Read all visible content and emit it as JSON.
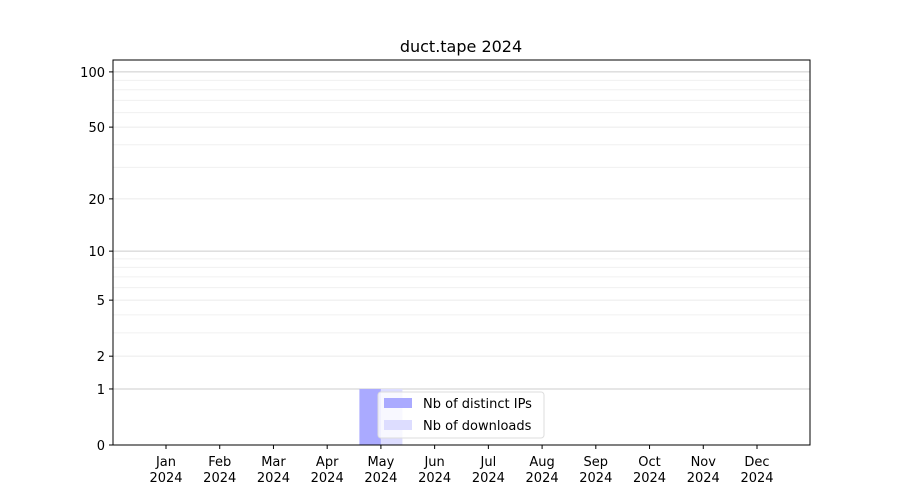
{
  "chart_data": {
    "type": "bar",
    "title": "duct.tape 2024",
    "xlabel": "",
    "ylabel": "",
    "yscale": "log(1+y)",
    "ylim": [
      0,
      116
    ],
    "yticks": [
      0,
      1,
      2,
      5,
      10,
      20,
      50,
      100
    ],
    "categories": [
      "Jan\n2024",
      "Feb\n2024",
      "Mar\n2024",
      "Apr\n2024",
      "May\n2024",
      "Jun\n2024",
      "Jul\n2024",
      "Aug\n2024",
      "Sep\n2024",
      "Oct\n2024",
      "Nov\n2024",
      "Dec\n2024"
    ],
    "series": [
      {
        "name": "Nb of distinct IPs",
        "color": "#aaaaff",
        "values": [
          0,
          0,
          0,
          0,
          1,
          0,
          0,
          0,
          0,
          0,
          0,
          0
        ]
      },
      {
        "name": "Nb of downloads",
        "color": "#ddddff",
        "values": [
          0,
          0,
          0,
          0,
          1,
          0,
          0,
          0,
          0,
          0,
          0,
          0
        ]
      }
    ],
    "grid": true,
    "legend": "bottom-center"
  }
}
